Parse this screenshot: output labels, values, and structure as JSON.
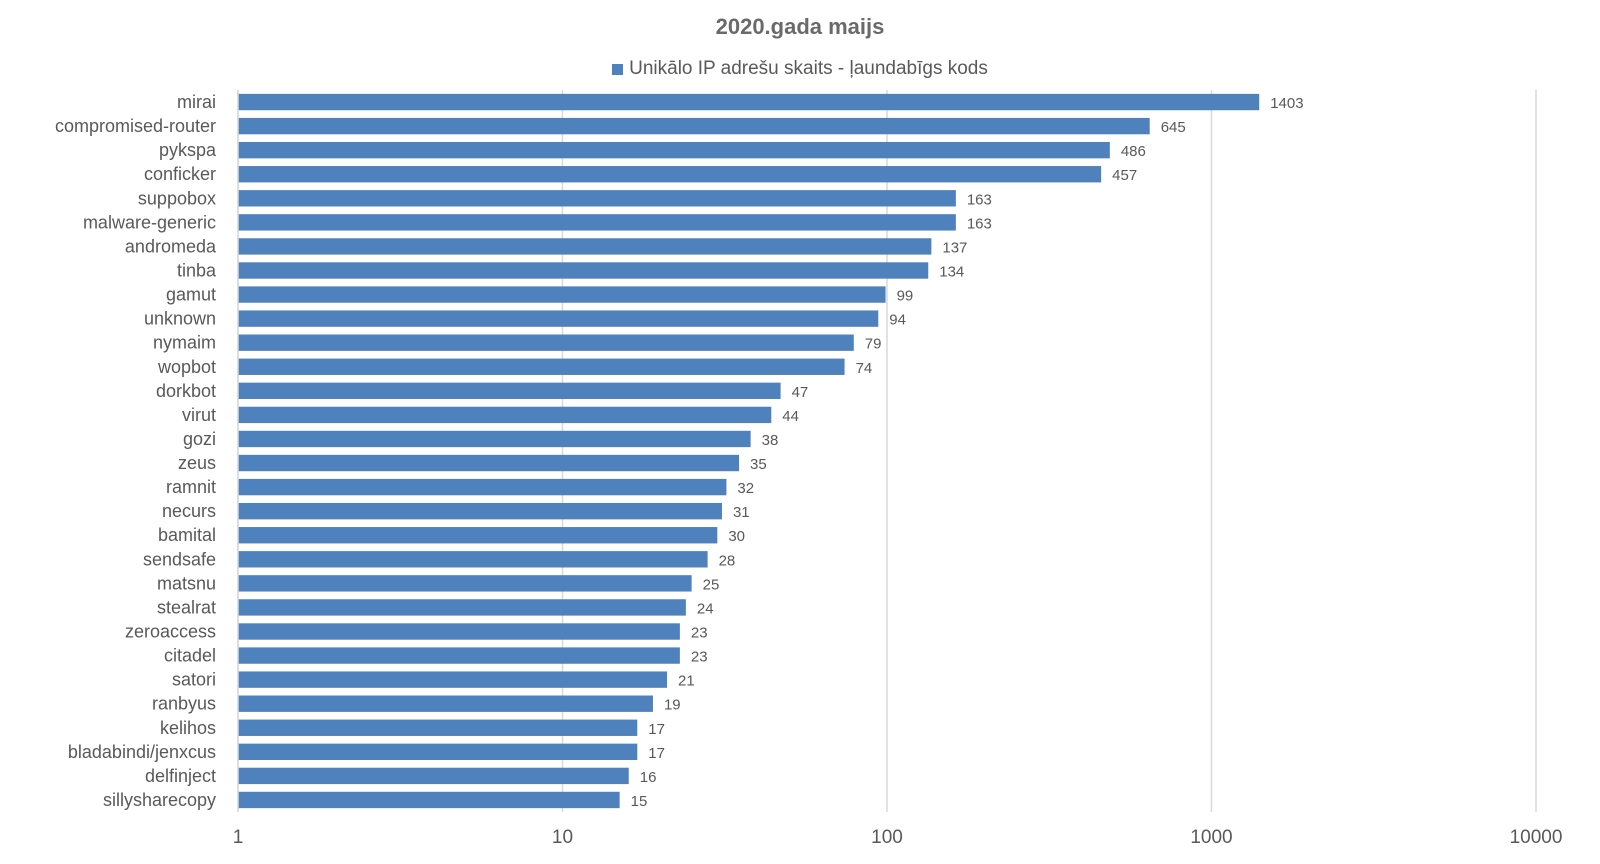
{
  "chart_data": {
    "type": "bar",
    "orientation": "horizontal",
    "title": "2020.gada maijs",
    "series": [
      {
        "name": "Unikālo IP adrešu skaits -  ļaundabīgs kods",
        "color": "#4f81bd",
        "values": [
          1403,
          645,
          486,
          457,
          163,
          163,
          137,
          134,
          99,
          94,
          79,
          74,
          47,
          44,
          38,
          35,
          32,
          31,
          30,
          28,
          25,
          24,
          23,
          23,
          21,
          19,
          17,
          17,
          16,
          15
        ]
      }
    ],
    "categories": [
      "mirai",
      "compromised-router",
      "pykspa",
      "conficker",
      "suppobox",
      "malware-generic",
      "andromeda",
      "tinba",
      "gamut",
      "unknown",
      "nymaim",
      "wopbot",
      "dorkbot",
      "virut",
      "gozi",
      "zeus",
      "ramnit",
      "necurs",
      "bamital",
      "sendsafe",
      "matsnu",
      "stealrat",
      "zeroaccess",
      "citadel",
      "satori",
      "ranbyus",
      "kelihos",
      "bladabindi/jenxcus",
      "delfinject",
      "sillysharecopy"
    ],
    "x_scale": "log",
    "xlim": [
      1,
      10000
    ],
    "x_ticks": [
      "1",
      "10",
      "100",
      "1000",
      "10000"
    ],
    "grid": "vertical",
    "legend_position": "top",
    "xlabel": "",
    "ylabel": ""
  }
}
